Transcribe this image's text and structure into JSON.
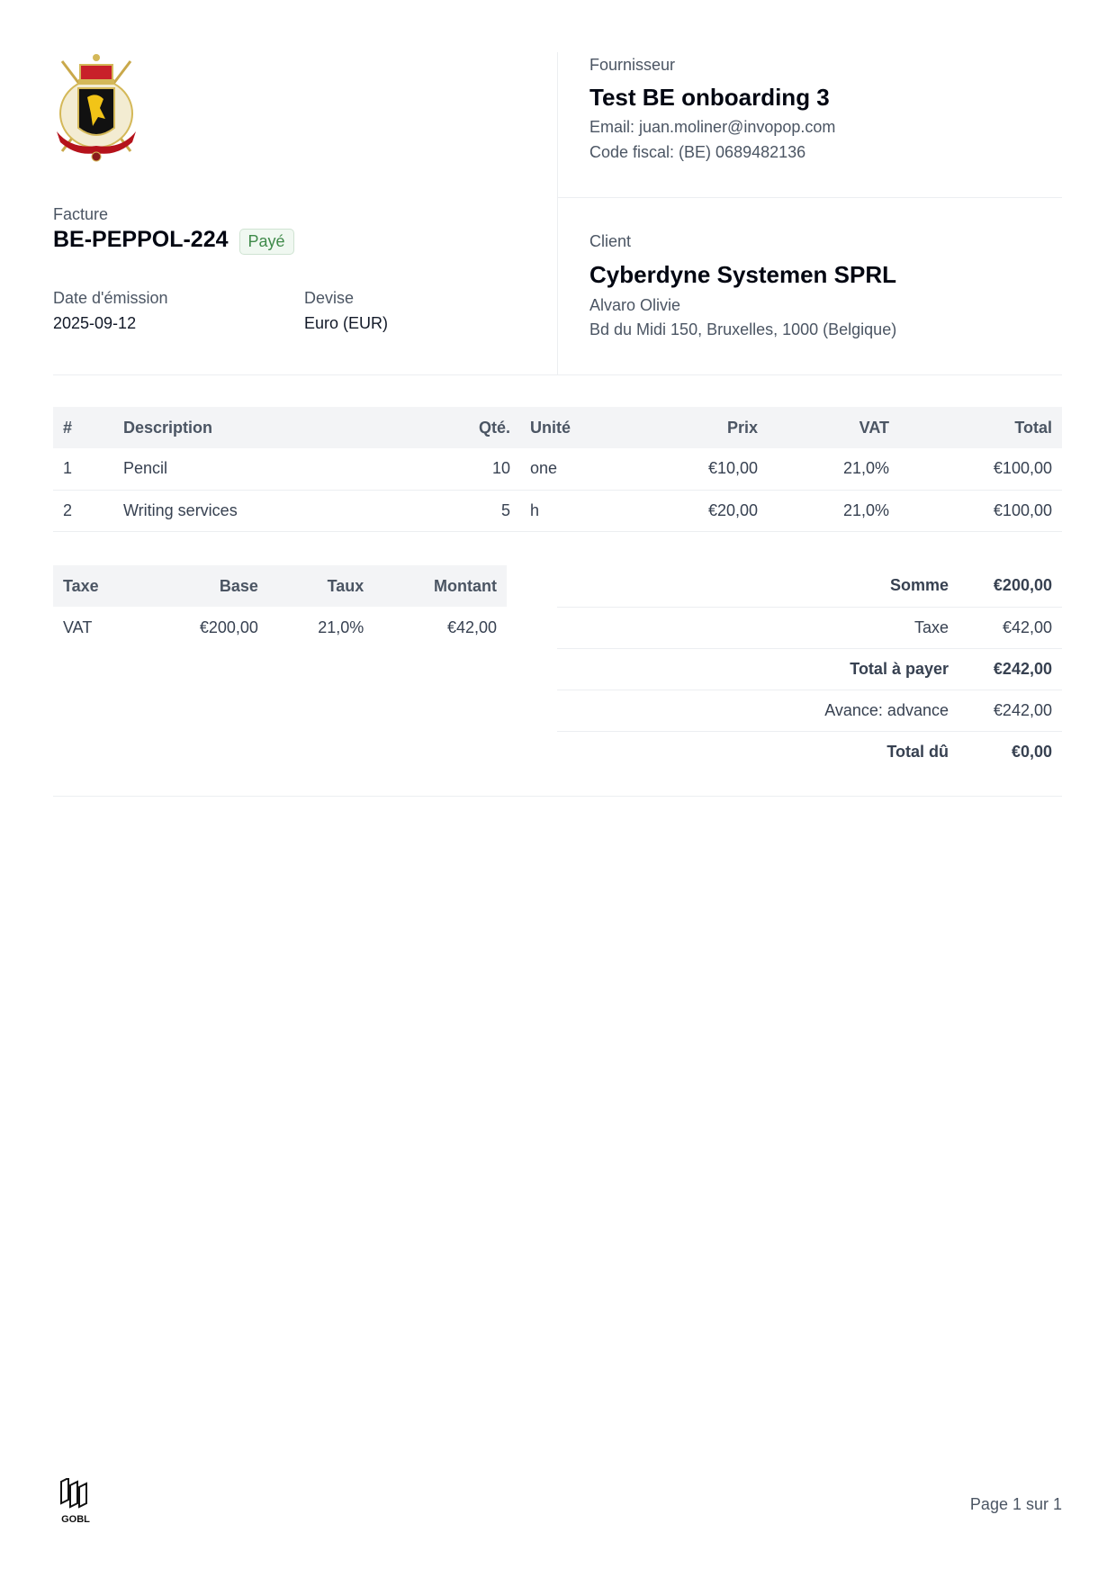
{
  "invoice": {
    "label": "Facture",
    "code": "BE-PEPPOL-224",
    "status": "Payé",
    "issue_date_label": "Date d'émission",
    "issue_date": "2025-09-12",
    "currency_label": "Devise",
    "currency": "Euro (EUR)"
  },
  "supplier": {
    "label": "Fournisseur",
    "name": "Test BE onboarding 3",
    "email": "Email: juan.moliner@invopop.com",
    "tax_code": "Code fiscal: (BE) 0689482136"
  },
  "customer": {
    "label": "Client",
    "name": "Cyberdyne Systemen SPRL",
    "contact": "Alvaro Olivie",
    "address": "Bd du Midi 150, Bruxelles, 1000 (Belgique)"
  },
  "lines": {
    "headers": [
      "#",
      "Description",
      "Qté.",
      "Unité",
      "Prix",
      "VAT",
      "Total"
    ],
    "rows": [
      [
        "1",
        "Pencil",
        "10",
        "one",
        "€10,00",
        "21,0%",
        "€100,00"
      ],
      [
        "2",
        "Writing services",
        "5",
        "h",
        "€20,00",
        "21,0%",
        "€100,00"
      ]
    ]
  },
  "taxes": {
    "headers": [
      "Taxe",
      "Base",
      "Taux",
      "Montant"
    ],
    "rows": [
      [
        "VAT",
        "€200,00",
        "21,0%",
        "€42,00"
      ]
    ]
  },
  "totals": [
    {
      "label": "Somme",
      "value": "€200,00",
      "bold": true
    },
    {
      "label": "Taxe",
      "value": "€42,00",
      "bold": false
    },
    {
      "label": "Total à payer",
      "value": "€242,00",
      "bold": true
    },
    {
      "label": "Avance: advance",
      "value": "€242,00",
      "bold": false
    },
    {
      "label": "Total dû",
      "value": "€0,00",
      "bold": true
    }
  ],
  "footer": {
    "logo_text": "GOBL",
    "page": "Page 1 sur 1"
  },
  "colors": {
    "paid_badge": "#3f8a4a",
    "header_bg": "#f3f4f6"
  },
  "icons": {
    "logo": "belgian-coat-of-arms",
    "footer_logo": "gobl-logo"
  }
}
